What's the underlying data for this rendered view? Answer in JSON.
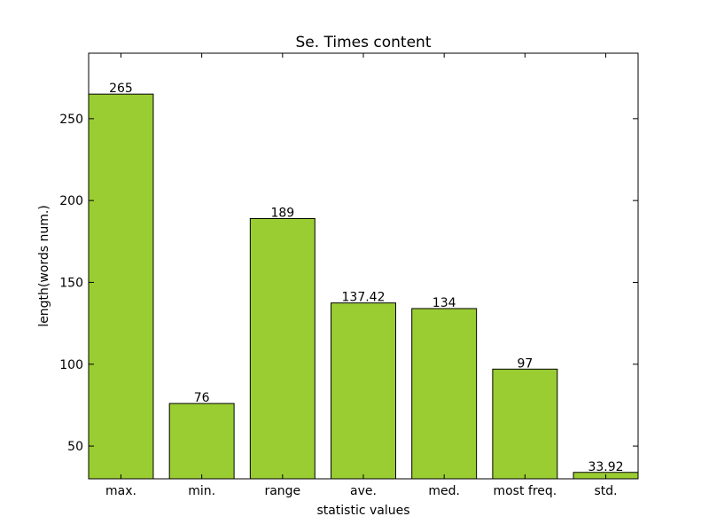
{
  "chart_data": {
    "type": "bar",
    "title": "Se. Times content",
    "xlabel": "statistic values",
    "ylabel": "length(words num.)",
    "categories": [
      "max.",
      "min.",
      "range",
      "ave.",
      "med.",
      "most freq.",
      "std."
    ],
    "values": [
      265,
      76,
      189,
      137.42,
      134,
      97,
      33.92
    ],
    "value_labels": [
      "265",
      "76",
      "189",
      "137.42",
      "134",
      "97",
      "33.92"
    ],
    "ylim": [
      30,
      290
    ],
    "yticks": [
      50,
      100,
      150,
      200,
      250
    ],
    "bar_color": "#9acd32",
    "edge_color": "#000000",
    "grid": false
  }
}
